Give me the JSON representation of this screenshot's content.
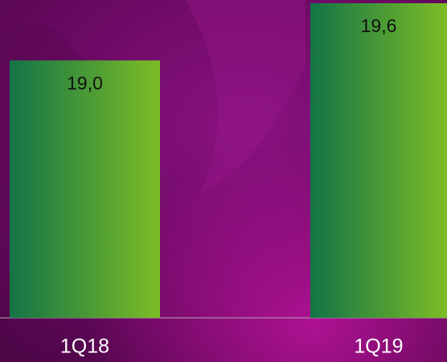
{
  "chart_data": {
    "type": "bar",
    "categories": [
      "1Q18",
      "1Q19"
    ],
    "values": [
      19.0,
      19.6
    ],
    "value_labels": [
      "19,0",
      "19,6"
    ],
    "color": [
      "#137446",
      "#7cbd26"
    ],
    "ylim": [
      16.3,
      19.6
    ]
  }
}
